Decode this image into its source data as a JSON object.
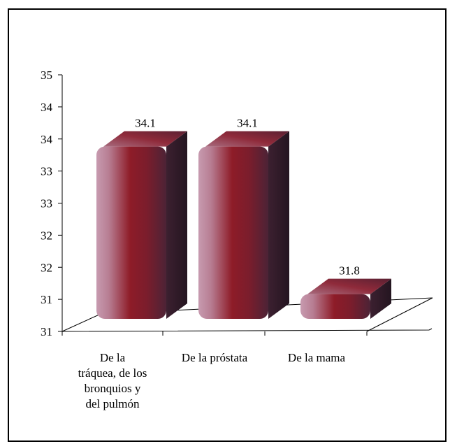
{
  "chart_data": {
    "type": "bar",
    "title": "",
    "xlabel": "",
    "ylabel": "",
    "categories": [
      [
        "De la",
        "tráquea, de los",
        "bronquios y",
        "del pulmón"
      ],
      [
        "De la próstata"
      ],
      [
        "De la mama"
      ]
    ],
    "values": [
      34.1,
      34.1,
      31.8
    ],
    "value_labels": [
      "34.1",
      "34.1",
      "31.8"
    ],
    "y_tick_labels": [
      "31",
      "31",
      "32",
      "32",
      "33",
      "33",
      "34",
      "34",
      "35"
    ],
    "ylim": [
      31,
      35
    ],
    "grid": false,
    "legend": "none",
    "bar_style": "3d-rounded",
    "colors": {
      "bar_light": "#b98a9d",
      "bar_mid": "#8c1f2a",
      "bar_dark": "#3a2030",
      "axis": "#000000"
    }
  }
}
